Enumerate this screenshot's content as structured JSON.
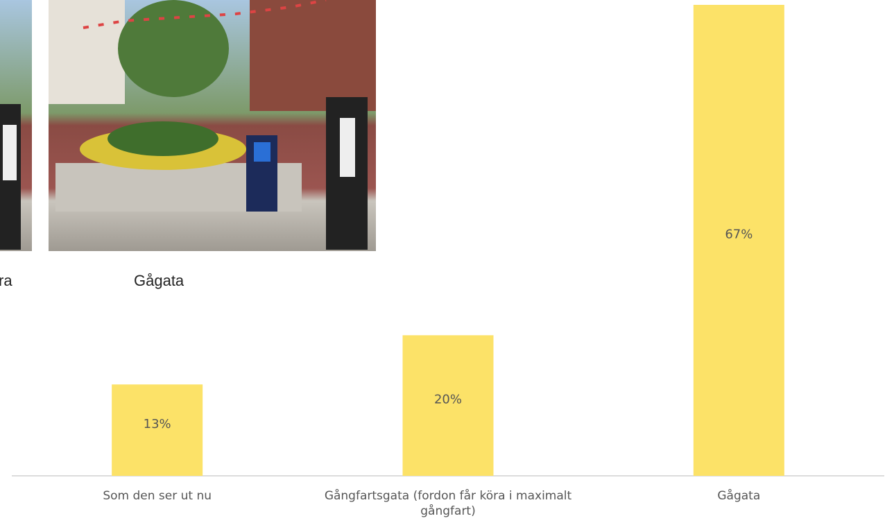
{
  "chart_data": {
    "type": "bar",
    "categories": [
      "Som den ser ut nu",
      "Gångfartsgata (fordon får köra i maximalt gångfart)",
      "Gågata"
    ],
    "values": [
      13,
      20,
      67
    ],
    "value_labels": [
      "13%",
      "20%",
      "67%"
    ],
    "color": "#fce268",
    "annotations": [
      "ra",
      "Gågata"
    ]
  }
}
